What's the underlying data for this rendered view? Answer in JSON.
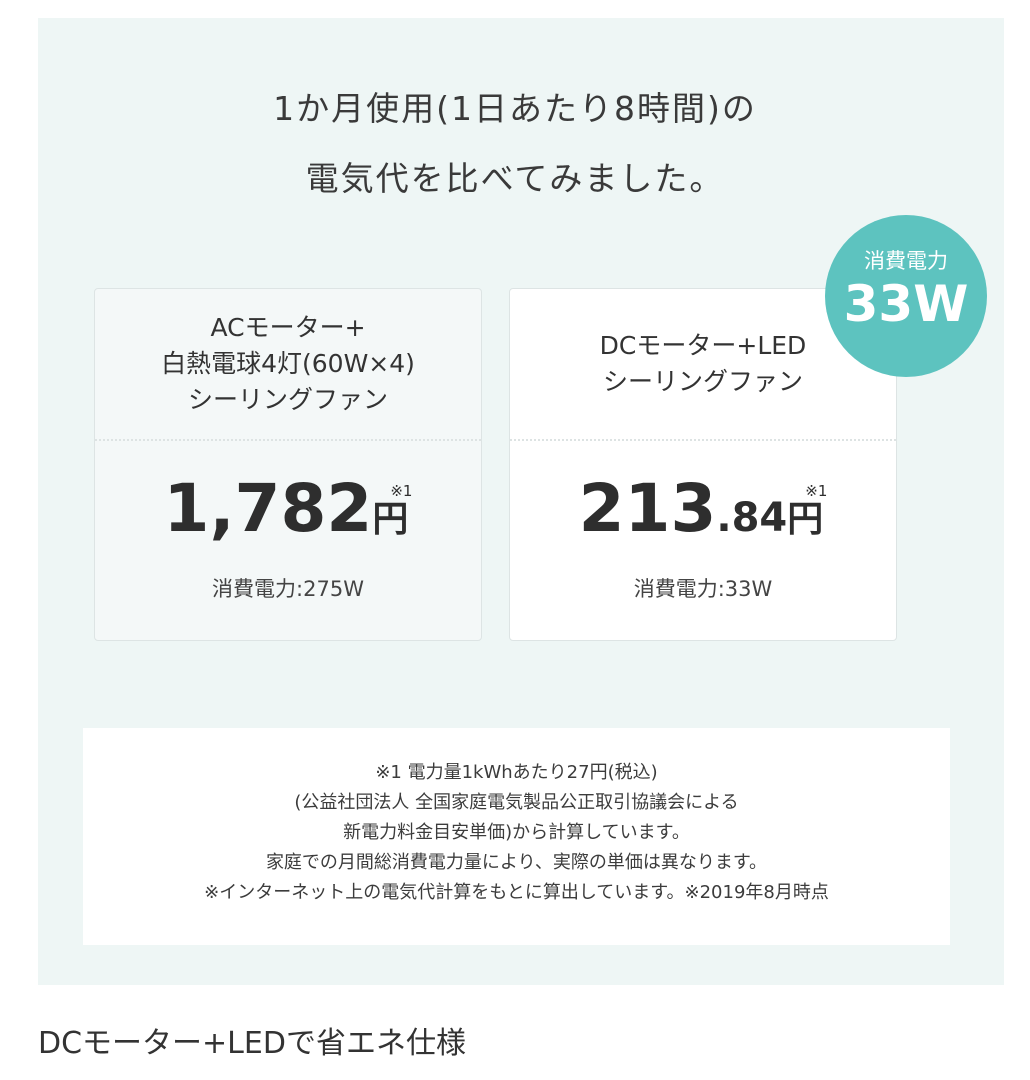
{
  "title": {
    "line1": "1か月使用(1日あたり8時間)の",
    "line2": "電気代を比べてみました。"
  },
  "badge": {
    "label": "消費電力",
    "value": "33W",
    "color": "#5dc3bf"
  },
  "cards": [
    {
      "heading": [
        "ACモーター+",
        "白熱電球4灯(60W×4)",
        "シーリングファン"
      ],
      "price": "1,782",
      "price_decimal": "",
      "currency": "円",
      "footnote": "※1",
      "power": "消費電力:275W"
    },
    {
      "heading": [
        "DCモーター+LED",
        "シーリングファン"
      ],
      "price": "213",
      "price_decimal": ".84",
      "currency": "円",
      "footnote": "※1",
      "power": "消費電力:33W"
    }
  ],
  "notes": [
    "※1 電力量1kWhあたり27円(税込)",
    "(公益社団法人 全国家庭電気製品公正取引協議会による",
    "新電力料金目安単価)から計算しています。",
    "家庭での月間総消費電力量により、実際の単価は異なります。",
    "※インターネット上の電気代計算をもとに算出しています。※2019年8月時点"
  ],
  "caption": "DCモーター+LEDで省エネ仕様"
}
